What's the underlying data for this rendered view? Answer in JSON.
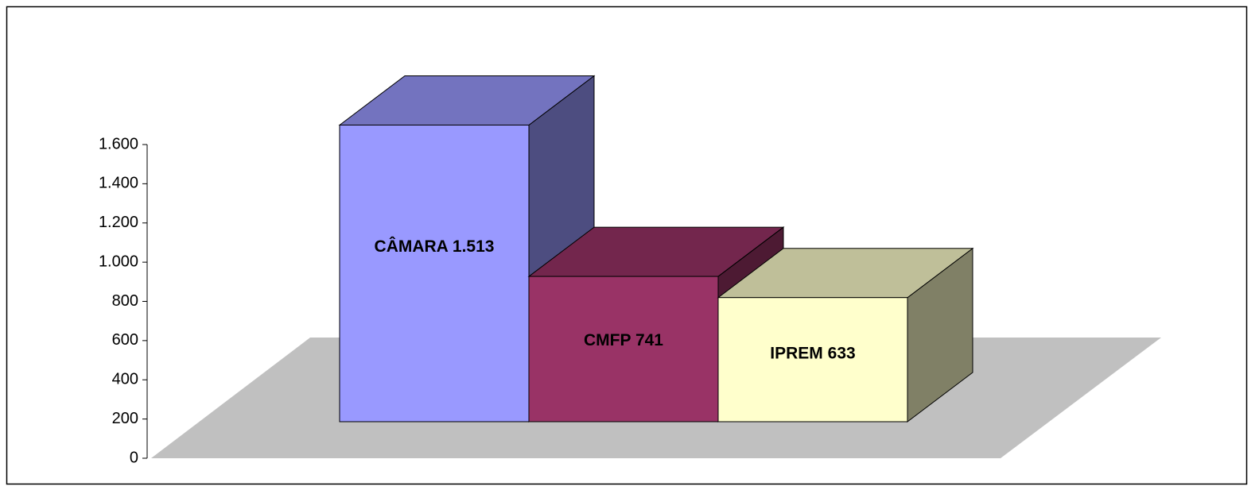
{
  "chart_data": {
    "type": "bar3d",
    "categories": [
      null,
      null,
      null
    ],
    "values": [
      1513,
      741,
      633
    ],
    "value_labels": [
      "CÂMARA 1.513",
      "CMFP 741",
      "IPREM  633"
    ],
    "colors": [
      "#9999ff",
      "#993366",
      "#ffffcc"
    ],
    "ylim": [
      0,
      1600
    ],
    "yticks": [
      0,
      200,
      400,
      600,
      800,
      {
        "value": 1000,
        "label": "1.000"
      },
      {
        "value": 1200,
        "label": "1.200"
      },
      {
        "value": 1400,
        "label": "1.400"
      },
      {
        "value": 1600,
        "label": "1.600"
      }
    ]
  }
}
